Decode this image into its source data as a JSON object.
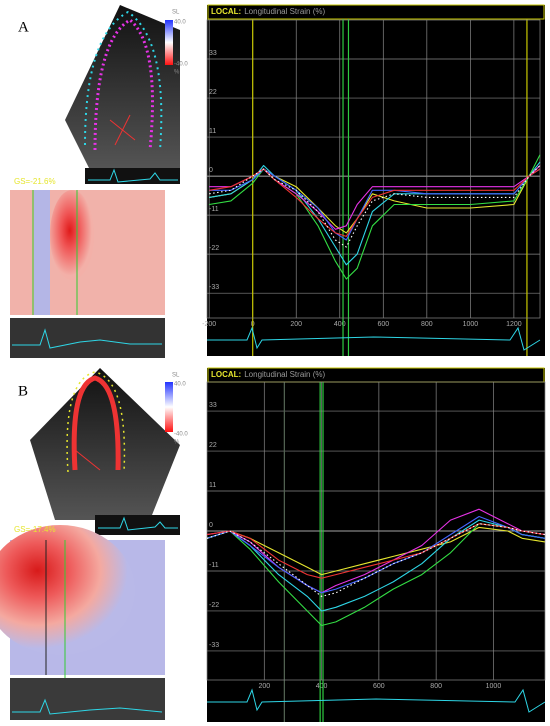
{
  "panels": [
    {
      "label": "A",
      "gs": "GS=-21.6%",
      "scale_title": "SL",
      "scale_max": "40.0",
      "scale_min": "-40.0",
      "scale_unit": "%"
    },
    {
      "label": "B",
      "gs": "GS=-17.4%",
      "scale_title": "SL",
      "scale_max": "40.0",
      "scale_min": "-40.0",
      "scale_unit": "%"
    }
  ],
  "chart_data": [
    {
      "type": "line",
      "title": "LOCAL:",
      "subtitle": "Longitudinal Strain (%)",
      "x": [
        -200,
        -100,
        0,
        50,
        100,
        200,
        300,
        380,
        430,
        480,
        550,
        650,
        800,
        1000,
        1200,
        1270,
        1320
      ],
      "xlim": [
        -210,
        1320
      ],
      "xticks": [
        -200,
        0,
        200,
        400,
        600,
        800,
        1000,
        1200
      ],
      "ylim": [
        -40,
        44
      ],
      "yticks": [
        33,
        22,
        11,
        0,
        -11,
        -22,
        -33
      ],
      "grid": true,
      "markers": [
        {
          "x": 0,
          "color": "#c8c800"
        },
        {
          "x": 1260,
          "color": "#c8c800"
        },
        {
          "x": 415,
          "color": "#2ecc40"
        },
        {
          "x": 440,
          "color": "#2ecc40"
        }
      ],
      "series": [
        {
          "color": "#e6e62e",
          "values": [
            -6,
            -5,
            -1,
            2,
            0,
            -3,
            -9,
            -14,
            -16,
            -12,
            -5,
            -7,
            -9,
            -9,
            -8,
            0,
            3
          ]
        },
        {
          "color": "#2ed6e6",
          "values": [
            -6,
            -5,
            -1,
            3,
            0,
            -4,
            -12,
            -20,
            -25,
            -22,
            -10,
            -5,
            -5,
            -5,
            -5,
            0,
            4
          ]
        },
        {
          "color": "#33dd44",
          "values": [
            -8,
            -7,
            -2,
            2,
            -1,
            -5,
            -14,
            -24,
            -29,
            -26,
            -14,
            -8,
            -8,
            -8,
            -7,
            0,
            6
          ]
        },
        {
          "color": "#e633e6",
          "values": [
            -3,
            -3,
            0,
            2,
            -1,
            -5,
            -10,
            -15,
            -14,
            -8,
            -3,
            -3,
            -3,
            -3,
            -3,
            0,
            3
          ]
        },
        {
          "color": "#4466ff",
          "values": [
            -4,
            -4,
            -1,
            2,
            0,
            -4,
            -9,
            -16,
            -18,
            -12,
            -4,
            -4,
            -5,
            -5,
            -5,
            0,
            2
          ]
        },
        {
          "color": "#ee3333",
          "values": [
            -4,
            -3,
            0,
            2,
            -1,
            -6,
            -12,
            -16,
            -17,
            -12,
            -6,
            -4,
            -4,
            -4,
            -4,
            0,
            2
          ]
        },
        {
          "color": "#ffffff",
          "dashed": true,
          "values": [
            -5,
            -4,
            0,
            2,
            -1,
            -4,
            -10,
            -18,
            -20,
            -14,
            -7,
            -5,
            -6,
            -6,
            -6,
            0,
            3
          ]
        }
      ]
    },
    {
      "type": "line",
      "title": "LOCAL:",
      "subtitle": "Longitudinal Strain (%)",
      "x": [
        0,
        80,
        150,
        250,
        350,
        400,
        450,
        550,
        650,
        750,
        850,
        950,
        1050,
        1100,
        1180
      ],
      "xlim": [
        0,
        1180
      ],
      "xticks": [
        200,
        400,
        600,
        800,
        1000
      ],
      "ylim": [
        -41,
        41
      ],
      "yticks": [
        33,
        22,
        11,
        0,
        -11,
        -22,
        -33
      ],
      "grid": true,
      "markers": [
        {
          "x": 270,
          "color": "#556655"
        },
        {
          "x": 395,
          "color": "#2ecc40"
        },
        {
          "x": 405,
          "color": "#2ecc40"
        }
      ],
      "series": [
        {
          "color": "#e6e62e",
          "values": [
            -2,
            0,
            -2,
            -6,
            -10,
            -12,
            -11,
            -9,
            -7,
            -5,
            -3,
            1,
            0,
            -2,
            -3
          ]
        },
        {
          "color": "#2ed6e6",
          "values": [
            -2,
            0,
            -4,
            -12,
            -18,
            -22,
            -21,
            -18,
            -14,
            -9,
            -2,
            3,
            1,
            -1,
            -2
          ]
        },
        {
          "color": "#33dd44",
          "values": [
            -2,
            0,
            -5,
            -14,
            -22,
            -26,
            -25,
            -21,
            -16,
            -12,
            -6,
            2,
            1,
            -1,
            -2
          ]
        },
        {
          "color": "#e633e6",
          "values": [
            -1,
            0,
            -3,
            -10,
            -15,
            -17,
            -15,
            -12,
            -8,
            -4,
            3,
            6,
            2,
            0,
            -1
          ]
        },
        {
          "color": "#4466ff",
          "values": [
            -2,
            0,
            -4,
            -10,
            -15,
            -17,
            -16,
            -13,
            -9,
            -6,
            -1,
            4,
            1,
            -1,
            -2
          ]
        },
        {
          "color": "#ee3333",
          "values": [
            -1,
            0,
            -2,
            -8,
            -12,
            -13,
            -12,
            -10,
            -8,
            -6,
            -2,
            2,
            1,
            0,
            -1
          ]
        },
        {
          "color": "#ffffff",
          "dashed": true,
          "values": [
            -2,
            0,
            -3,
            -9,
            -15,
            -18,
            -17,
            -13,
            -9,
            -6,
            -2,
            2,
            1,
            0,
            -1
          ]
        }
      ]
    }
  ]
}
